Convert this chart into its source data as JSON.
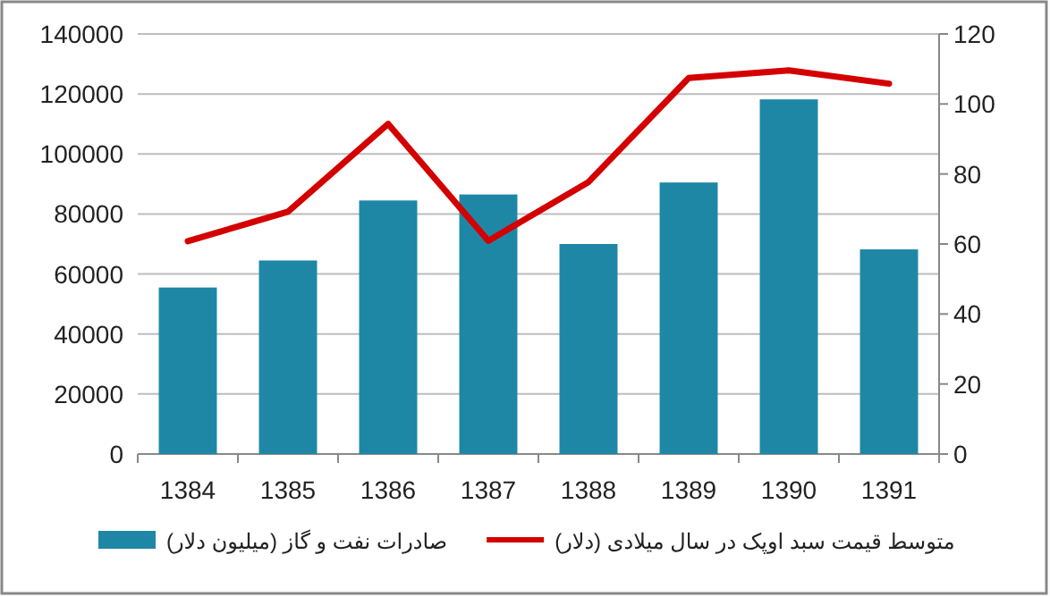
{
  "chart_data": {
    "type": "bar",
    "categories": [
      "1384",
      "1385",
      "1386",
      "1387",
      "1388",
      "1389",
      "1390",
      "1391"
    ],
    "series": [
      {
        "name": "صادرات نفت و گاز (میلیون دلار)",
        "color": "#1f87a6",
        "values": [
          55500,
          64500,
          84500,
          86500,
          70000,
          90500,
          118200,
          68200
        ]
      },
      {
        "name": "متوسط قیمت سبد اوپک در سال میلادی (دلار)",
        "type": "line",
        "axis": "y2",
        "color": "#d40000",
        "values": [
          60.8,
          69.2,
          94.3,
          60.9,
          77.7,
          107.4,
          109.6,
          105.8
        ]
      }
    ],
    "ylim": [
      0,
      140000
    ],
    "yticks": [
      0,
      20000,
      40000,
      60000,
      80000,
      100000,
      120000,
      140000
    ],
    "y2lim": [
      0,
      120
    ],
    "y2ticks": [
      0,
      20,
      40,
      60,
      80,
      100,
      120
    ],
    "grid": "y",
    "legend": "bottom",
    "marker": "none",
    "line_style": "solid"
  }
}
